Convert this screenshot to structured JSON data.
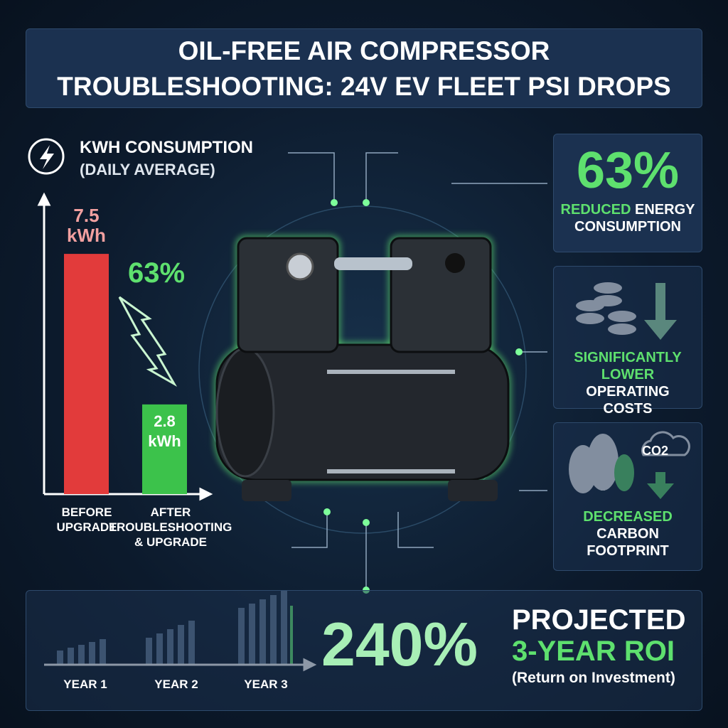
{
  "header": {
    "title_line1": "OIL-FREE AIR COMPRESSOR",
    "title_line2": "TROUBLESHOOTING: 24V EV FLEET PSI DROPS"
  },
  "chart_data": {
    "type": "bar",
    "title": "KWH CONSUMPTION",
    "subtitle": "(DAILY AVERAGE)",
    "categories": [
      "BEFORE UPGRADE",
      "AFTER TROUBLESHOOTING & UPGRADE"
    ],
    "values": [
      7.5,
      2.8
    ],
    "value_labels": [
      "7.5 kWh",
      "2.8 kWh"
    ],
    "colors": [
      "#e23b3b",
      "#3cc24b"
    ],
    "annotation": "63%",
    "ylim": [
      0,
      9.5
    ]
  },
  "cards": [
    {
      "big": "63%",
      "highlight": "REDUCED",
      "text": "ENERGY CONSUMPTION"
    },
    {
      "highlight": "SIGNIFICANTLY LOWER",
      "text": "OPERATING COSTS"
    },
    {
      "icon_label": "CO2",
      "highlight": "DECREASED",
      "text": "CARBON FOOTPRINT"
    }
  ],
  "roi": {
    "years": [
      "YEAR 1",
      "YEAR 2",
      "YEAR 3"
    ],
    "value": "240%",
    "title": "PROJECTED",
    "subtitle": "3-YEAR ROI",
    "note": "(Return on Investment)"
  }
}
